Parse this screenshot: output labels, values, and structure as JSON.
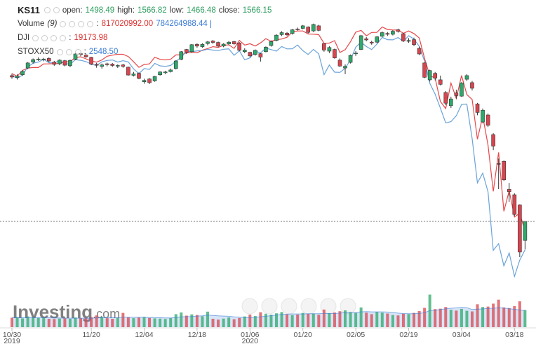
{
  "chart_data": {
    "type": "candlestick",
    "symbol": "KS11",
    "legend": {
      "open": "open:",
      "high": "high:",
      "low": "low:",
      "close": "close:",
      "volume": "Volume",
      "period": "(9)",
      "separator": ":"
    },
    "watermark": [
      "Investing",
      ".com"
    ],
    "categories": [
      "10/30",
      null,
      null,
      null,
      null,
      null,
      null,
      null,
      null,
      null,
      null,
      null,
      null,
      null,
      null,
      "11/20",
      null,
      null,
      null,
      null,
      null,
      null,
      null,
      null,
      null,
      "12/04",
      null,
      null,
      null,
      null,
      null,
      null,
      null,
      null,
      null,
      "12/18",
      null,
      null,
      null,
      null,
      null,
      null,
      null,
      null,
      null,
      "01/06",
      null,
      null,
      null,
      null,
      null,
      null,
      null,
      null,
      null,
      "01/20",
      null,
      null,
      null,
      null,
      null,
      null,
      null,
      null,
      null,
      "02/05",
      null,
      null,
      null,
      null,
      null,
      null,
      null,
      null,
      null,
      "02/19",
      null,
      null,
      null,
      null,
      null,
      null,
      null,
      null,
      null,
      "03/04",
      null,
      null,
      null,
      null,
      null,
      null,
      null,
      null,
      null,
      "03/18",
      null,
      null
    ],
    "category_years": [
      "2019",
      null,
      null,
      null,
      null,
      null,
      null,
      null,
      null,
      null,
      null,
      null,
      null,
      null,
      null,
      null,
      null,
      null,
      null,
      null,
      null,
      null,
      null,
      null,
      null,
      null,
      null,
      null,
      null,
      null,
      null,
      null,
      null,
      null,
      null,
      null,
      null,
      null,
      null,
      null,
      null,
      null,
      null,
      null,
      null,
      "2020",
      null,
      null,
      null,
      null,
      null,
      null,
      null,
      null,
      null,
      null,
      null,
      null,
      null,
      null,
      null,
      null,
      null,
      null,
      null,
      null,
      null,
      null,
      null,
      null,
      null,
      null,
      null,
      null,
      null,
      null,
      null,
      null,
      null,
      null,
      null,
      null,
      null,
      null,
      null,
      null,
      null,
      null,
      null,
      null,
      null,
      null,
      null,
      null,
      null,
      null,
      null,
      null
    ],
    "open": [
      2085,
      2078,
      2088,
      2112,
      2133,
      2143,
      2142,
      2146,
      2133,
      2127,
      2138,
      2120,
      2143,
      2163,
      2158,
      2150,
      2125,
      2118,
      2127,
      2126,
      2119,
      2123,
      2115,
      2086,
      2093,
      2063,
      2073,
      2066,
      2088,
      2095,
      2099,
      2110,
      2143,
      2178,
      2170,
      2196,
      2188,
      2199,
      2208,
      2203,
      2190,
      2198,
      2206,
      2201,
      2170,
      2168,
      2160,
      2163,
      2170,
      2192,
      2210,
      2231,
      2236,
      2235,
      2251,
      2253,
      2258,
      2244,
      2262,
      2199,
      2172,
      2178,
      2140,
      2112,
      2132,
      2164,
      2178,
      2216,
      2204,
      2204,
      2225,
      2235,
      2232,
      2248,
      2234,
      2207,
      2213,
      2182,
      2130,
      2070,
      2093,
      2070,
      2025,
      1978,
      2023,
      2012,
      2072,
      2060,
      1984,
      1920,
      1945,
      1875,
      1772,
      1780,
      1680,
      1661,
      1625,
      1498.49
    ],
    "high": [
      2092,
      2090,
      2104,
      2133,
      2146,
      2150,
      2148,
      2150,
      2137,
      2143,
      2141,
      2142,
      2165,
      2167,
      2163,
      2152,
      2130,
      2128,
      2131,
      2130,
      2125,
      2127,
      2117,
      2098,
      2096,
      2074,
      2076,
      2084,
      2100,
      2102,
      2110,
      2140,
      2172,
      2180,
      2197,
      2200,
      2200,
      2208,
      2212,
      2206,
      2200,
      2208,
      2209,
      2204,
      2182,
      2170,
      2178,
      2165,
      2189,
      2210,
      2232,
      2243,
      2240,
      2251,
      2256,
      2265,
      2260,
      2270,
      2266,
      2200,
      2190,
      2181,
      2146,
      2125,
      2160,
      2172,
      2230,
      2222,
      2209,
      2226,
      2242,
      2240,
      2247,
      2252,
      2237,
      2218,
      2220,
      2188,
      2132,
      2106,
      2098,
      2085,
      2030,
      2010,
      2035,
      2062,
      2090,
      2066,
      1988,
      1968,
      1950,
      1880,
      1790,
      1783,
      1703,
      1666,
      1627,
      1566.82
    ],
    "low": [
      2074,
      2071,
      2084,
      2108,
      2128,
      2137,
      2136,
      2132,
      2120,
      2122,
      2118,
      2115,
      2140,
      2154,
      2148,
      2122,
      2113,
      2110,
      2118,
      2116,
      2112,
      2113,
      2085,
      2082,
      2072,
      2056,
      2055,
      2063,
      2085,
      2090,
      2096,
      2107,
      2140,
      2162,
      2166,
      2184,
      2184,
      2193,
      2198,
      2186,
      2186,
      2194,
      2195,
      2172,
      2165,
      2150,
      2156,
      2135,
      2168,
      2188,
      2207,
      2226,
      2226,
      2231,
      2245,
      2250,
      2235,
      2240,
      2243,
      2170,
      2165,
      2145,
      2116,
      2090,
      2128,
      2155,
      2176,
      2207,
      2195,
      2200,
      2222,
      2226,
      2228,
      2238,
      2205,
      2202,
      2190,
      2158,
      2076,
      2064,
      2068,
      2050,
      1980,
      1970,
      2003,
      2009,
      2066,
      2032,
      1944,
      1915,
      1902,
      1820,
      1681,
      1710,
      1636,
      1585,
      1439,
      1466.48
    ],
    "close": [
      2080,
      2083,
      2100,
      2130,
      2142,
      2144,
      2144,
      2137,
      2125,
      2140,
      2122,
      2139,
      2162,
      2160,
      2152,
      2126,
      2122,
      2123,
      2124,
      2121,
      2121,
      2118,
      2087,
      2091,
      2075,
      2068,
      2060,
      2082,
      2098,
      2098,
      2105,
      2137,
      2170,
      2168,
      2195,
      2190,
      2196,
      2205,
      2203,
      2190,
      2197,
      2204,
      2198,
      2175,
      2176,
      2155,
      2175,
      2151,
      2186,
      2206,
      2229,
      2238,
      2230,
      2248,
      2250,
      2262,
      2239,
      2267,
      2246,
      2176,
      2185,
      2148,
      2119,
      2118,
      2157,
      2165,
      2227,
      2212,
      2201,
      2223,
      2238,
      2232,
      2243,
      2242,
      2208,
      2210,
      2195,
      2162,
      2079,
      2103,
      2076,
      2054,
      1987,
      2002,
      2014,
      2059,
      2085,
      2040,
      1954,
      1962,
      1908,
      1834,
      1771,
      1714,
      1672,
      1591,
      1457,
      1566.15
    ],
    "ylim": [
      1307,
      2354
    ],
    "up_color": "#2ea86a",
    "down_color": "#d9454e",
    "overlays": [
      {
        "name": "DJI",
        "color": "#e8474a",
        "ylim": [
          15973,
          30923
        ],
        "values": [
          27186,
          27046,
          27347,
          27462,
          27492,
          27492,
          27675,
          27681,
          27691,
          27691,
          27784,
          27782,
          28005,
          28036,
          27934,
          27821,
          27766,
          27876,
          28066,
          28122,
          28164,
          28164,
          28051,
          27783,
          27503,
          27650,
          27677,
          28015,
          27909,
          27881,
          27911,
          28132,
          28135,
          28235,
          28267,
          28239,
          28376,
          28455,
          28551,
          28515,
          28621,
          28645,
          28462,
          28869,
          28634,
          28703,
          28583,
          28745,
          28957,
          28824,
          28907,
          28940,
          29030,
          29297,
          29348,
          29348,
          29196,
          29186,
          29160,
          28723,
          28734,
          28859,
          28256,
          28400,
          28808,
          29290,
          29380,
          29103,
          29276,
          29277,
          29551,
          29423,
          29398,
          29398,
          29232,
          29348,
          29219,
          28992,
          27961,
          27081,
          26957,
          25766,
          25409,
          26703,
          25917,
          27091,
          26121,
          25865,
          23851,
          25018,
          23553,
          21200,
          23185,
          20189,
          21237,
          19899,
          20088,
          19173.98
        ]
      },
      {
        "name": "STOXX50",
        "color": "#6aa3d9",
        "ylim": [
          2275,
          4085
        ],
        "value_label": "2548.50",
        "values": [
          3620,
          3604,
          3623,
          3674,
          3696,
          3703,
          3721,
          3699,
          3699,
          3711,
          3695,
          3690,
          3718,
          3714,
          3706,
          3690,
          3682,
          3705,
          3713,
          3716,
          3703,
          3712,
          3704,
          3661,
          3632,
          3663,
          3658,
          3695,
          3680,
          3677,
          3682,
          3709,
          3731,
          3772,
          3767,
          3772,
          3774,
          3782,
          3777,
          3774,
          3782,
          3784,
          3745,
          3773,
          3717,
          3729,
          3771,
          3759,
          3789,
          3780,
          3771,
          3799,
          3784,
          3785,
          3808,
          3773,
          3750,
          3781,
          3754,
          3626,
          3685,
          3641,
          3640,
          3665,
          3717,
          3795,
          3825,
          3799,
          3780,
          3814,
          3855,
          3841,
          3840,
          3854,
          3830,
          3865,
          3845,
          3800,
          3709,
          3572,
          3506,
          3420,
          3329,
          3337,
          3373,
          3442,
          3445,
          3232,
          2960,
          3020,
          2905,
          2545,
          2586,
          2450,
          2529,
          2385,
          2485,
          2548.5
        ]
      }
    ],
    "volume": [
      450000000.0,
      480000000.0,
      420000000.0,
      510000000.0,
      460000000.0,
      440000000.0,
      430000000.0,
      400000000.0,
      390000000.0,
      410000000.0,
      420000000.0,
      400000000.0,
      460000000.0,
      430000000.0,
      440000000.0,
      480000000.0,
      560000000.0,
      490000000.0,
      430000000.0,
      400000000.0,
      450000000.0,
      680000000.0,
      470000000.0,
      430000000.0,
      460000000.0,
      490000000.0,
      440000000.0,
      420000000.0,
      410000000.0,
      390000000.0,
      430000000.0,
      620000000.0,
      700000000.0,
      550000000.0,
      610000000.0,
      580000000.0,
      520000000.0,
      740000000.0,
      400000000.0,
      360000000.0,
      410000000.0,
      460000000.0,
      380000000.0,
      440000000.0,
      510000000.0,
      600000000.0,
      530000000.0,
      710000000.0,
      640000000.0,
      590000000.0,
      660000000.0,
      720000000.0,
      610000000.0,
      570000000.0,
      600000000.0,
      680000000.0,
      630000000.0,
      650000000.0,
      590000000.0,
      840000000.0,
      670000000.0,
      700000000.0,
      760000000.0,
      800000000.0,
      720000000.0,
      680000000.0,
      940000000.0,
      690000000.0,
      620000000.0,
      730000000.0,
      690000000.0,
      650000000.0,
      580000000.0,
      560000000.0,
      640000000.0,
      620000000.0,
      680000000.0,
      770000000.0,
      920000000.0,
      1550000000.0,
      860000000.0,
      880000000.0,
      960000000.0,
      830000000.0,
      790000000.0,
      870000000.0,
      780000000.0,
      750000000.0,
      1090000000.0,
      960000000.0,
      980000000.0,
      1120000000.0,
      1310000000.0,
      940000000.0,
      910000000.0,
      1000000000.0,
      1230000000.0,
      817020992
    ],
    "volume_label": "817020992.00",
    "volume_ma": [
      450000000.0,
      460000000.0,
      450000000.0,
      460000000.0,
      460000000.0,
      460000000.0,
      450000000.0,
      450000000.0,
      440000000.0,
      440000000.0,
      430000000.0,
      430000000.0,
      430000000.0,
      430000000.0,
      430000000.0,
      430000000.0,
      440000000.0,
      450000000.0,
      450000000.0,
      450000000.0,
      450000000.0,
      480000000.0,
      470000000.0,
      470000000.0,
      470000000.0,
      470000000.0,
      460000000.0,
      460000000.0,
      450000000.0,
      440000000.0,
      440000000.0,
      460000000.0,
      490000000.0,
      500000000.0,
      510000000.0,
      530000000.0,
      540000000.0,
      580000000.0,
      560000000.0,
      540000000.0,
      530000000.0,
      520000000.0,
      490000000.0,
      480000000.0,
      460000000.0,
      460000000.0,
      470000000.0,
      500000000.0,
      520000000.0,
      550000000.0,
      580000000.0,
      610000000.0,
      620000000.0,
      630000000.0,
      630000000.0,
      630000000.0,
      640000000.0,
      640000000.0,
      640000000.0,
      660000000.0,
      650000000.0,
      650000000.0,
      670000000.0,
      690000000.0,
      700000000.0,
      700000000.0,
      730000000.0,
      740000000.0,
      730000000.0,
      730000000.0,
      730000000.0,
      720000000.0,
      700000000.0,
      670000000.0,
      650000000.0,
      640000000.0,
      640000000.0,
      660000000.0,
      690000000.0,
      790000000.0,
      810000000.0,
      840000000.0,
      870000000.0,
      900000000.0,
      920000000.0,
      940000000.0,
      930000000.0,
      840000000.0,
      860000000.0,
      870000000.0,
      890000000.0,
      900000000.0,
      930000000.0,
      910000000.0,
      880000000.0,
      850000000.0,
      820000000.0,
      784264988.44
    ],
    "volume_lim": [
      0,
      1600000000
    ],
    "volume_color": "#c9262c",
    "volume_ma_color": "#3a7bd5"
  }
}
